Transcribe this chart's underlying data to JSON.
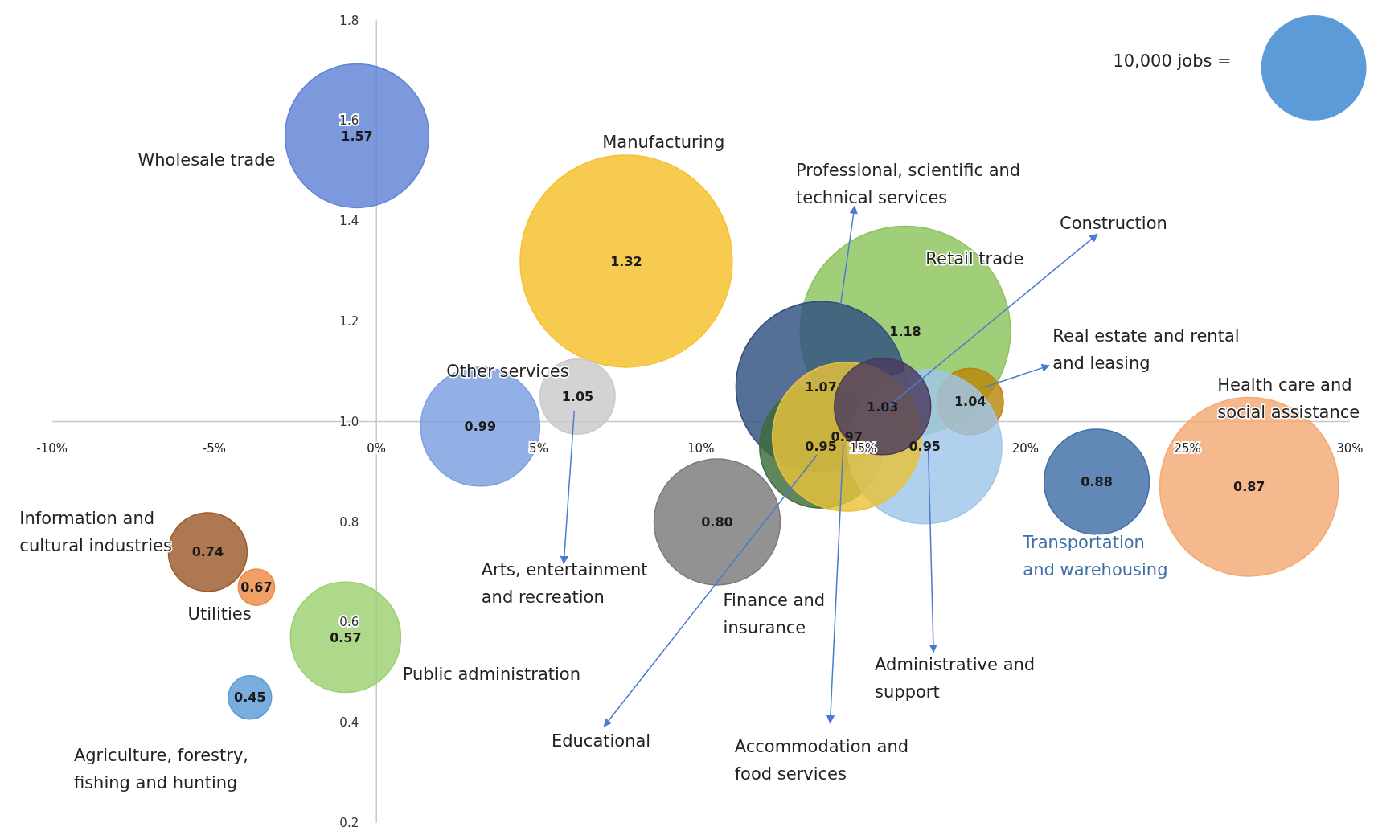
{
  "chart_data": {
    "type": "bubble",
    "xlim": [
      -10,
      30
    ],
    "xticks": [
      {
        "value": -10,
        "label": "-10%"
      },
      {
        "value": -5,
        "label": "-5%"
      },
      {
        "value": 0,
        "label": "0%"
      },
      {
        "value": 5,
        "label": "5%"
      },
      {
        "value": 10,
        "label": "10%"
      },
      {
        "value": 15,
        "label": "15%"
      },
      {
        "value": 20,
        "label": "20%"
      },
      {
        "value": 25,
        "label": "25%"
      },
      {
        "value": 30,
        "label": "30%"
      }
    ],
    "ylim": [
      0.2,
      1.8
    ],
    "yticks": [
      0.2,
      0.4,
      0.6,
      0.8,
      {
        "value": 1,
        "label": "1.0"
      },
      1.2,
      1.4,
      1.6,
      1.8
    ],
    "size_legend": [
      {
        "value": 10000,
        "label": "10,000 jobs ="
      }
    ],
    "grid": false,
    "series": [
      {
        "name": "Wholesale trade",
        "color": "#6083d6",
        "x": [
          -0.6
        ],
        "values": [
          1.57
        ],
        "sizes": [
          18700
        ],
        "value_labels": [
          "1.57"
        ]
      },
      {
        "name": "Manufacturing",
        "color": "#f5c02a",
        "x": [
          7.7
        ],
        "values": [
          1.32
        ],
        "sizes": [
          40700
        ],
        "value_labels": [
          "1.32"
        ]
      },
      {
        "name": "Arts, entertainment and recreation",
        "color": "#c9c9c9",
        "x": [
          6.2
        ],
        "values": [
          1.05
        ],
        "sizes": [
          5100
        ],
        "value_labels": [
          "1.05"
        ]
      },
      {
        "name": "Other services",
        "color": "#7a9ee0",
        "x": [
          3.2
        ],
        "values": [
          0.99
        ],
        "sizes": [
          12800
        ],
        "value_labels": [
          "0.99"
        ]
      },
      {
        "name": "Retail trade",
        "color": "#8cc35a",
        "x": [
          16.3
        ],
        "values": [
          1.18
        ],
        "sizes": [
          40000
        ],
        "value_labels": [
          "1.18"
        ]
      },
      {
        "name": "Professional, scientific and technical services",
        "color": "#2f4f7f",
        "x": [
          13.7
        ],
        "values": [
          1.07
        ],
        "sizes": [
          26100
        ],
        "value_labels": [
          "1.07"
        ]
      },
      {
        "name": "Educational",
        "color": "#3d6b3a",
        "x": [
          13.7
        ],
        "values": [
          0.95
        ],
        "sizes": [
          13600
        ],
        "value_labels": [
          "0.95"
        ]
      },
      {
        "name": "Real estate and rental and leasing",
        "color": "#b8860b",
        "x": [
          18.3
        ],
        "values": [
          1.04
        ],
        "sizes": [
          4000
        ],
        "value_labels": [
          "1.04"
        ]
      },
      {
        "name": "Administrative and support",
        "color": "#a0c6ea",
        "x": [
          16.9
        ],
        "values": [
          0.95
        ],
        "sizes": [
          21500
        ],
        "value_labels": [
          "0.95"
        ]
      },
      {
        "name": "Accommodation and food services",
        "color": "#e8c23a",
        "x": [
          14.5
        ],
        "values": [
          0.97
        ],
        "sizes": [
          20100
        ],
        "value_labels": [
          "0.97"
        ]
      },
      {
        "name": "Construction",
        "color": "#4b3a5e",
        "x": [
          15.6
        ],
        "values": [
          1.03
        ],
        "sizes": [
          8400
        ],
        "value_labels": [
          "1.03"
        ]
      },
      {
        "name": "Finance and insurance",
        "color": "#7a7a7a",
        "x": [
          10.5
        ],
        "values": [
          0.8
        ],
        "sizes": [
          14400
        ],
        "value_labels": [
          "0.80"
        ]
      },
      {
        "name": "Transportation and warehousing",
        "color": "#3f6fa6",
        "x": [
          22.2
        ],
        "values": [
          0.88
        ],
        "sizes": [
          10000
        ],
        "value_labels": [
          "0.88"
        ]
      },
      {
        "name": "Health care and social assistance",
        "color": "#f4a874",
        "x": [
          26.9
        ],
        "values": [
          0.87
        ],
        "sizes": [
          28900
        ],
        "value_labels": [
          "0.87"
        ]
      },
      {
        "name": "Information and cultural industries",
        "color": "#9c5a2c",
        "x": [
          -5.2
        ],
        "values": [
          0.74
        ],
        "sizes": [
          5600
        ],
        "value_labels": [
          "0.74"
        ]
      },
      {
        "name": "Utilities",
        "color": "#ed8a45",
        "x": [
          -3.7
        ],
        "values": [
          0.67
        ],
        "sizes": [
          1200
        ],
        "value_labels": [
          "0.67"
        ]
      },
      {
        "name": "Public administration",
        "color": "#9ccf70",
        "x": [
          -0.95
        ],
        "values": [
          0.57
        ],
        "sizes": [
          11000
        ],
        "value_labels": [
          "0.57"
        ]
      },
      {
        "name": "Agriculture, forestry, fishing and hunting",
        "color": "#5b9bd5",
        "x": [
          -3.9
        ],
        "values": [
          0.45
        ],
        "sizes": [
          1700
        ],
        "value_labels": [
          "0.45"
        ]
      }
    ]
  }
}
